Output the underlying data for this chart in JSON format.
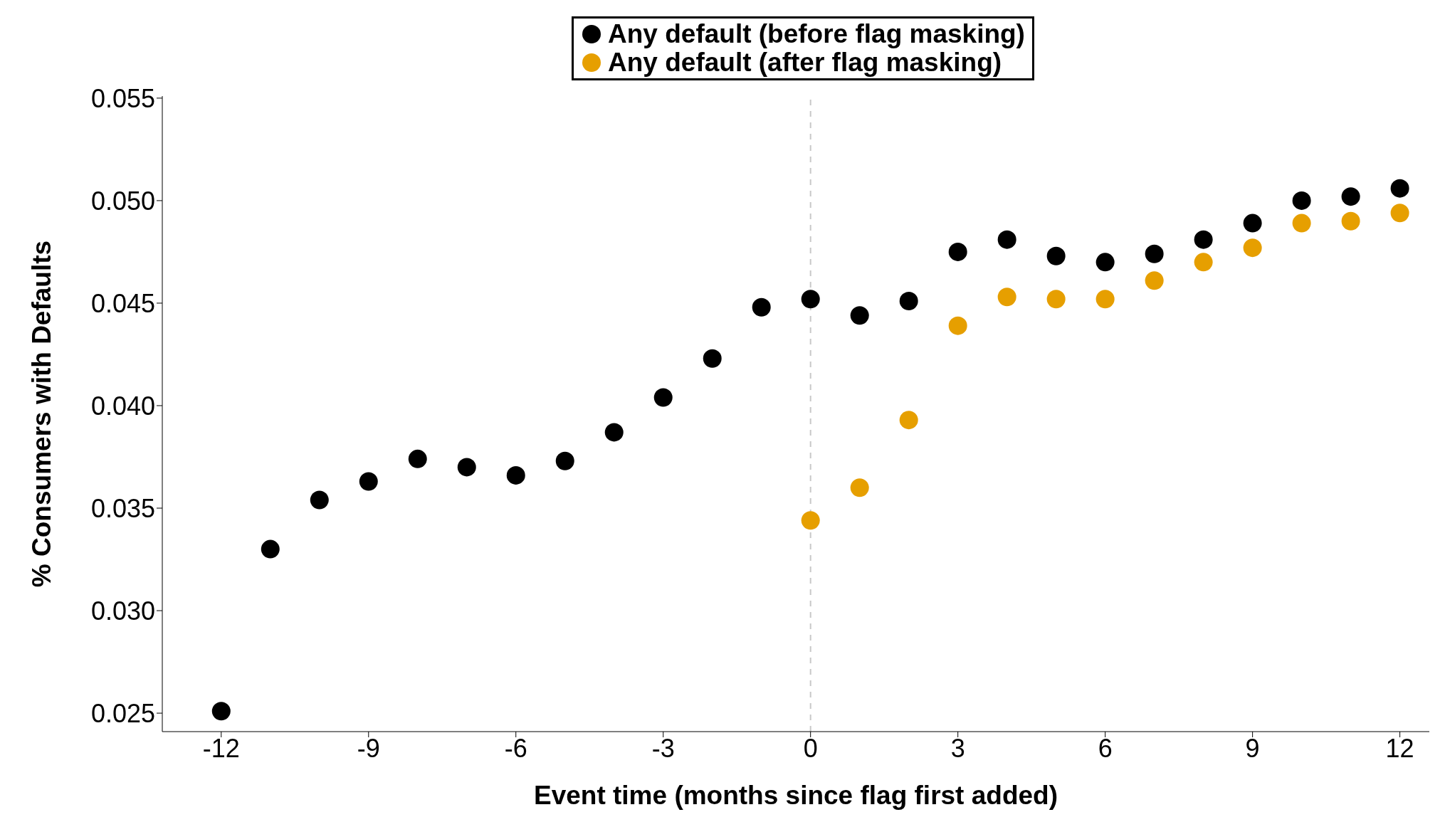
{
  "chart_data": {
    "type": "scatter",
    "xlabel": "Event time (months since flag first added)",
    "ylabel": "% Consumers with Defaults",
    "x": [
      -12,
      -11,
      -10,
      -9,
      -8,
      -7,
      -6,
      -5,
      -4,
      -3,
      -2,
      -1,
      0,
      1,
      2,
      3,
      4,
      5,
      6,
      7,
      8,
      9,
      10,
      11,
      12
    ],
    "series": [
      {
        "name": "Any default (before flag masking)",
        "color": "#000000",
        "values": [
          0.0251,
          0.033,
          0.0354,
          0.0363,
          0.0374,
          0.037,
          0.0366,
          0.0373,
          0.0387,
          0.0404,
          0.0423,
          0.0448,
          0.0452,
          0.0444,
          0.0451,
          0.0475,
          0.0481,
          0.0473,
          0.047,
          0.0474,
          0.0481,
          0.0489,
          0.05,
          0.0502,
          0.0506
        ]
      },
      {
        "name": "Any default (after flag masking)",
        "color": "#e69f00",
        "values": [
          null,
          null,
          null,
          null,
          null,
          null,
          null,
          null,
          null,
          null,
          null,
          null,
          0.0344,
          0.036,
          0.0393,
          0.0439,
          0.0453,
          0.0452,
          0.0452,
          0.0461,
          0.047,
          0.0477,
          0.0489,
          0.049,
          0.0494
        ]
      }
    ],
    "xlim": [
      -13.2,
      12.6
    ],
    "xticks": [
      -12,
      -9,
      -6,
      -3,
      0,
      3,
      6,
      9,
      12
    ],
    "ylim": [
      0.0241,
      0.0551
    ],
    "yticks": [
      {
        "value": 0.025,
        "label": "0.025"
      },
      {
        "value": 0.03,
        "label": "0.030"
      },
      {
        "value": 0.035,
        "label": "0.035"
      },
      {
        "value": 0.04,
        "label": "0.040"
      },
      {
        "value": 0.045,
        "label": "0.045"
      },
      {
        "value": 0.05,
        "label": "0.050"
      },
      {
        "value": 0.055,
        "label": "0.055"
      }
    ],
    "ref_lines": [
      {
        "axis": "x",
        "value": 0,
        "color": "#c8c8c8",
        "line_style": "dashed"
      }
    ],
    "grid": false,
    "legend": "top",
    "marker": "circle"
  }
}
